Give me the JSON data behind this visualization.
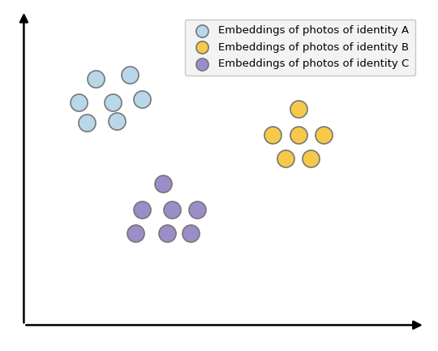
{
  "background_color": "#ffffff",
  "identity_A": {
    "x": [
      1.7,
      2.5,
      1.3,
      2.1,
      2.8,
      1.5,
      2.2
    ],
    "y": [
      7.2,
      7.3,
      6.5,
      6.5,
      6.6,
      5.9,
      5.95
    ],
    "face_color": "#b8d8ea",
    "edge_color": "#777777",
    "label": "Embeddings of photos of identity A"
  },
  "identity_B": {
    "x": [
      6.5,
      5.9,
      6.5,
      7.1,
      6.2,
      6.8
    ],
    "y": [
      6.3,
      5.55,
      5.55,
      5.55,
      4.85,
      4.85
    ],
    "face_color": "#f7c948",
    "edge_color": "#777777",
    "label": "Embeddings of photos of identity B"
  },
  "identity_C": {
    "x": [
      3.3,
      2.8,
      3.5,
      4.1,
      2.65,
      3.4,
      3.95
    ],
    "y": [
      4.1,
      3.35,
      3.35,
      3.35,
      2.65,
      2.65,
      2.65
    ],
    "face_color": "#9b8dc8",
    "edge_color": "#777777",
    "label": "Embeddings of photos of identity C"
  },
  "xlim": [
    -0.15,
    9.5
  ],
  "ylim": [
    -0.4,
    9.2
  ],
  "marker_size": 230,
  "edge_width": 1.2,
  "legend_fontsize": 9.5,
  "legend_loc": "upper right",
  "legend_bg": "#f0f0f0",
  "legend_edge": "#bbbbbb"
}
